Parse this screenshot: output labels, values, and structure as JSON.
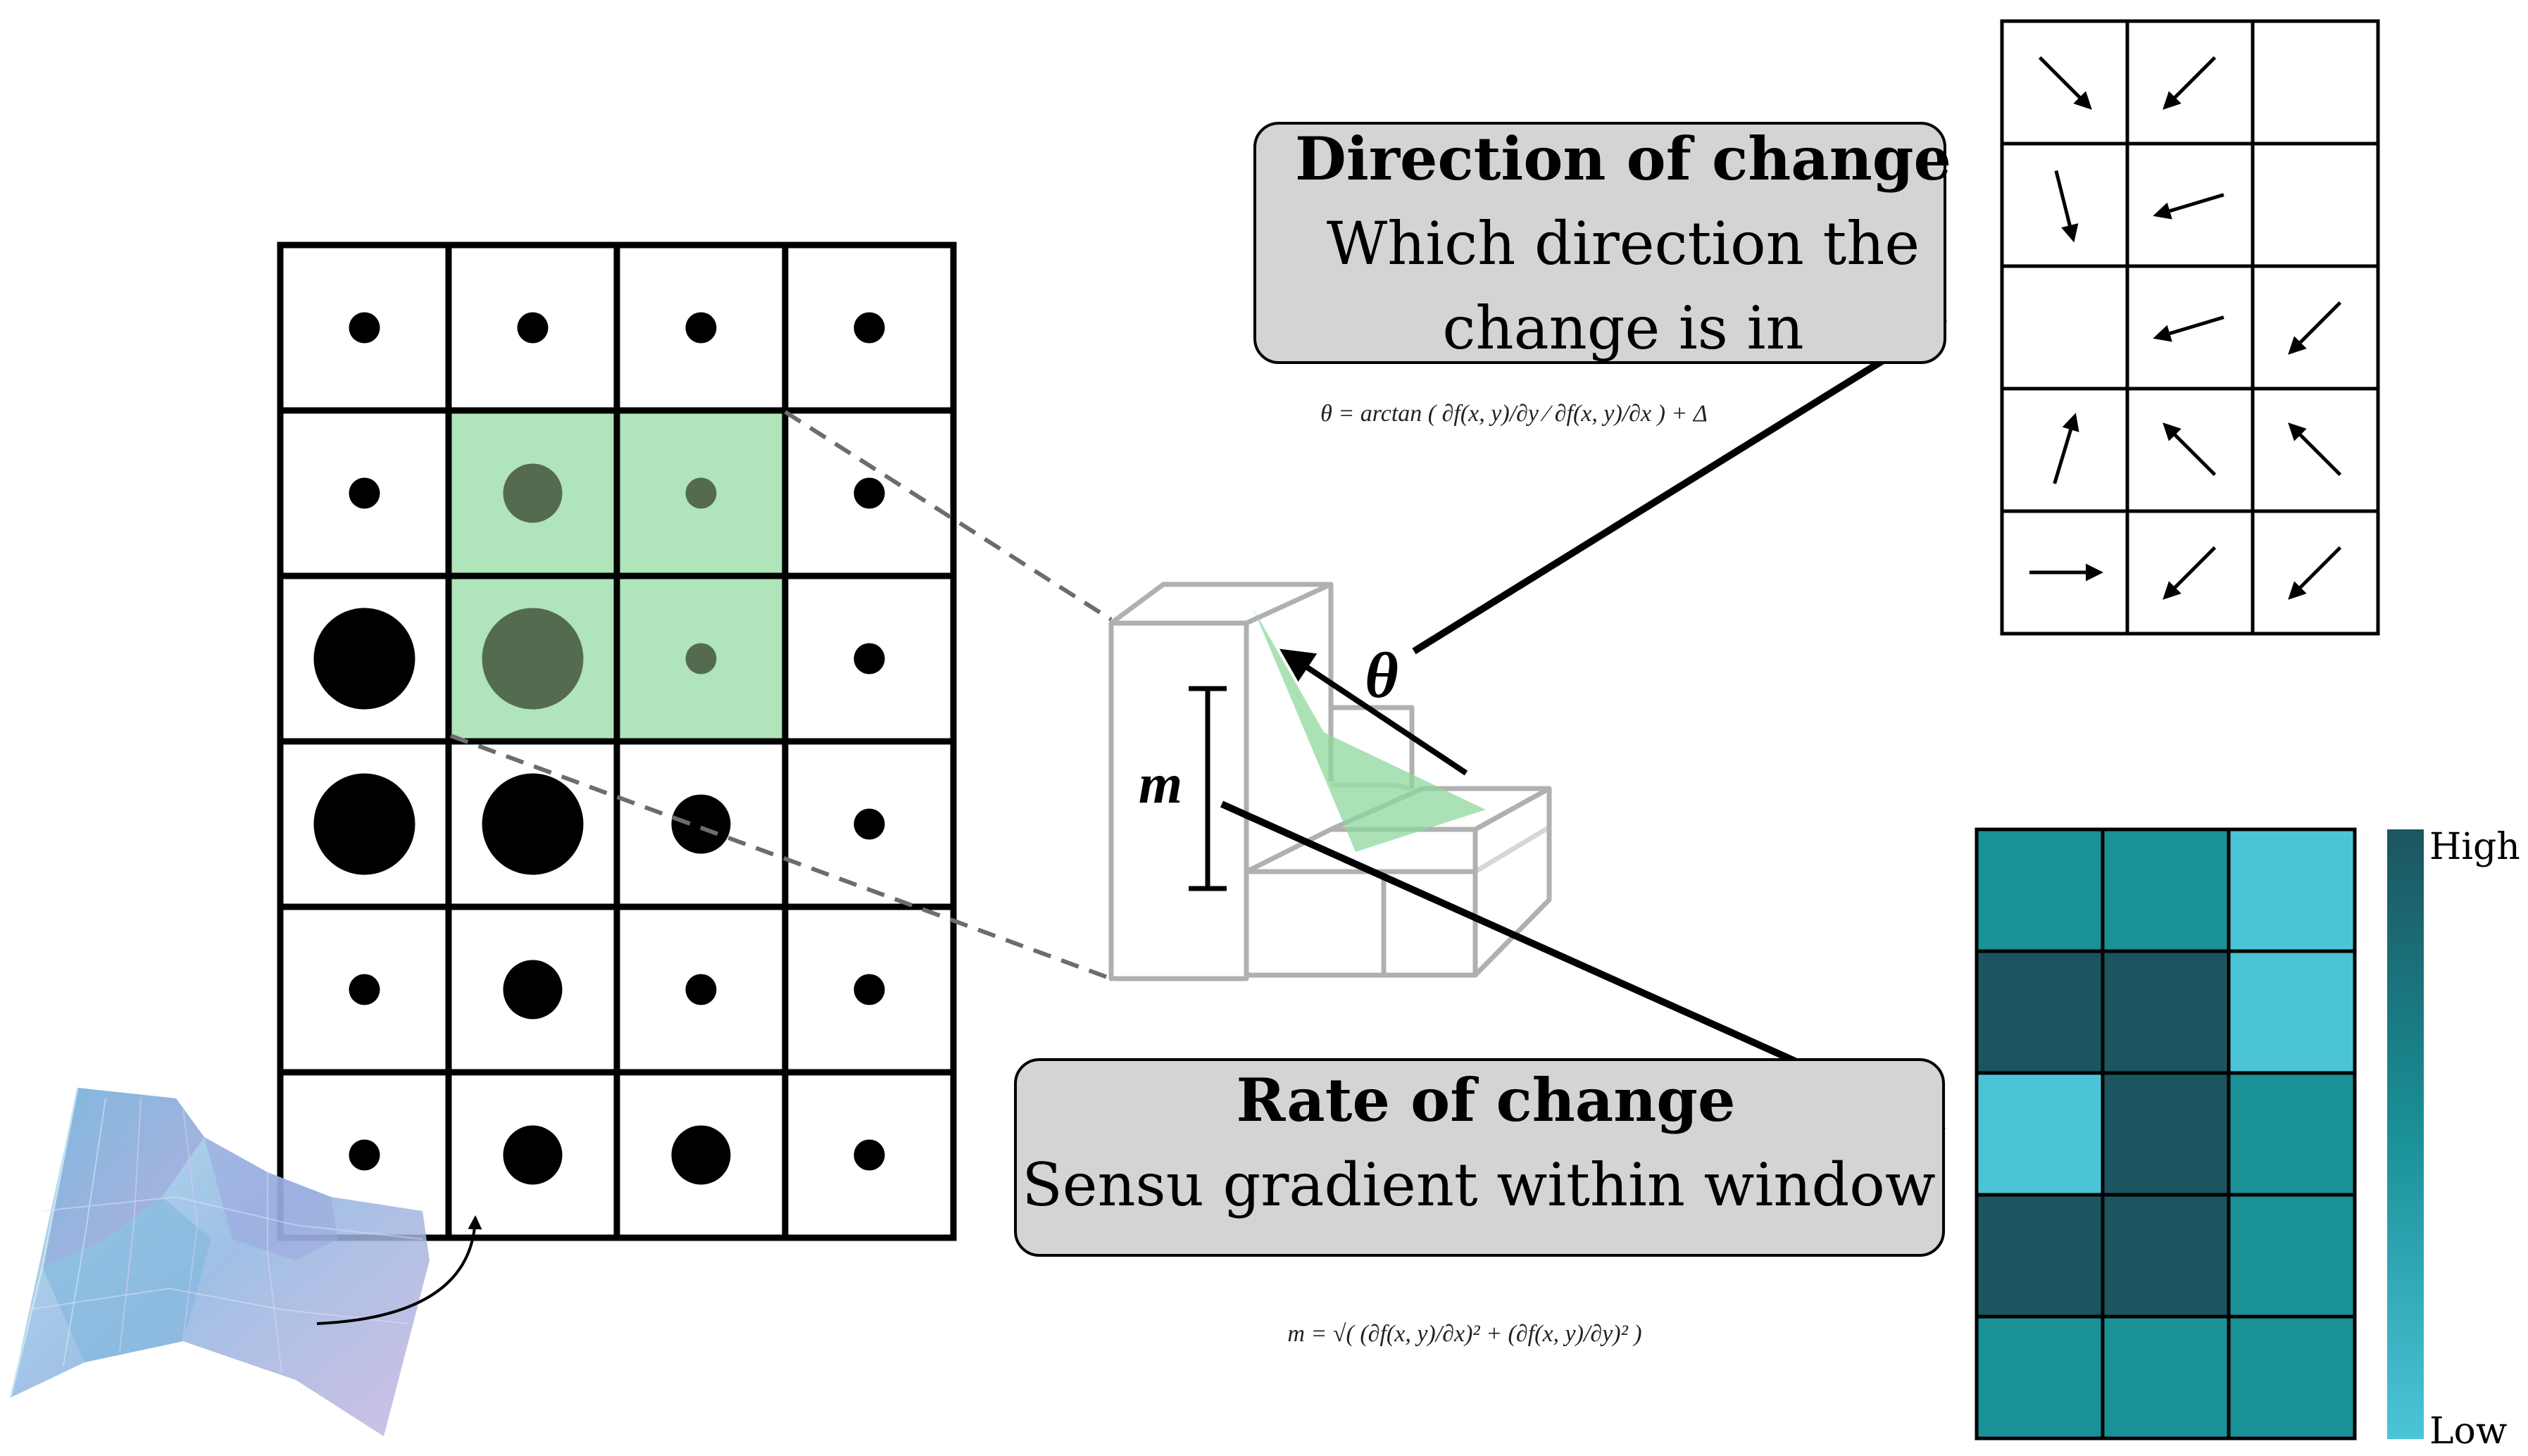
{
  "direction_box": {
    "title": "Direction of change",
    "line1": "Which direction the",
    "line2": "change is in"
  },
  "rate_box": {
    "title": "Rate of change",
    "line1": "Sensu gradient within window"
  },
  "formula_theta": "θ = arctan ( ∂f(x, y)/∂y ⁄ ∂f(x, y)/∂x ) + Δ",
  "formula_m": "m = √( (∂f(x, y)/∂x)² + (∂f(x, y)/∂y)² )",
  "labels": {
    "theta": "θ",
    "m": "m"
  },
  "colorbar": {
    "high": "High",
    "low": "Low"
  },
  "colors": {
    "window_green": "#8fd89c",
    "box_gray": "#d4d4d6",
    "teal_dark": "#1b5560",
    "teal_mid": "#1a9097",
    "teal_light": "#4cc4d8"
  },
  "point_grid": {
    "rows": 6,
    "cols": 4,
    "dot_sizes": [
      [
        "small",
        "small",
        "small",
        "small"
      ],
      [
        "small",
        "medium",
        "small",
        "small"
      ],
      [
        "large",
        "large",
        "small",
        "small"
      ],
      [
        "large",
        "large",
        "medium",
        "small"
      ],
      [
        "small",
        "medium",
        "small",
        "small"
      ],
      [
        "small",
        "medium",
        "medium",
        "small"
      ]
    ],
    "highlighted_window": {
      "rows": [
        1,
        2
      ],
      "cols": [
        1,
        2
      ]
    }
  },
  "direction_grid": {
    "rows": 5,
    "cols": 3,
    "arrows": [
      [
        "down-right",
        "down-left",
        "none"
      ],
      [
        "down",
        "left",
        "none"
      ],
      [
        "none",
        "left",
        "down-left"
      ],
      [
        "up",
        "up-left",
        "up-left"
      ],
      [
        "right",
        "down-left",
        "down-left"
      ]
    ]
  },
  "magnitude_grid": {
    "rows": 5,
    "cols": 3,
    "levels": [
      [
        "mid",
        "mid",
        "light"
      ],
      [
        "dark",
        "dark",
        "light"
      ],
      [
        "light",
        "dark",
        "mid"
      ],
      [
        "dark",
        "dark",
        "mid"
      ],
      [
        "mid",
        "mid",
        "mid"
      ]
    ]
  }
}
